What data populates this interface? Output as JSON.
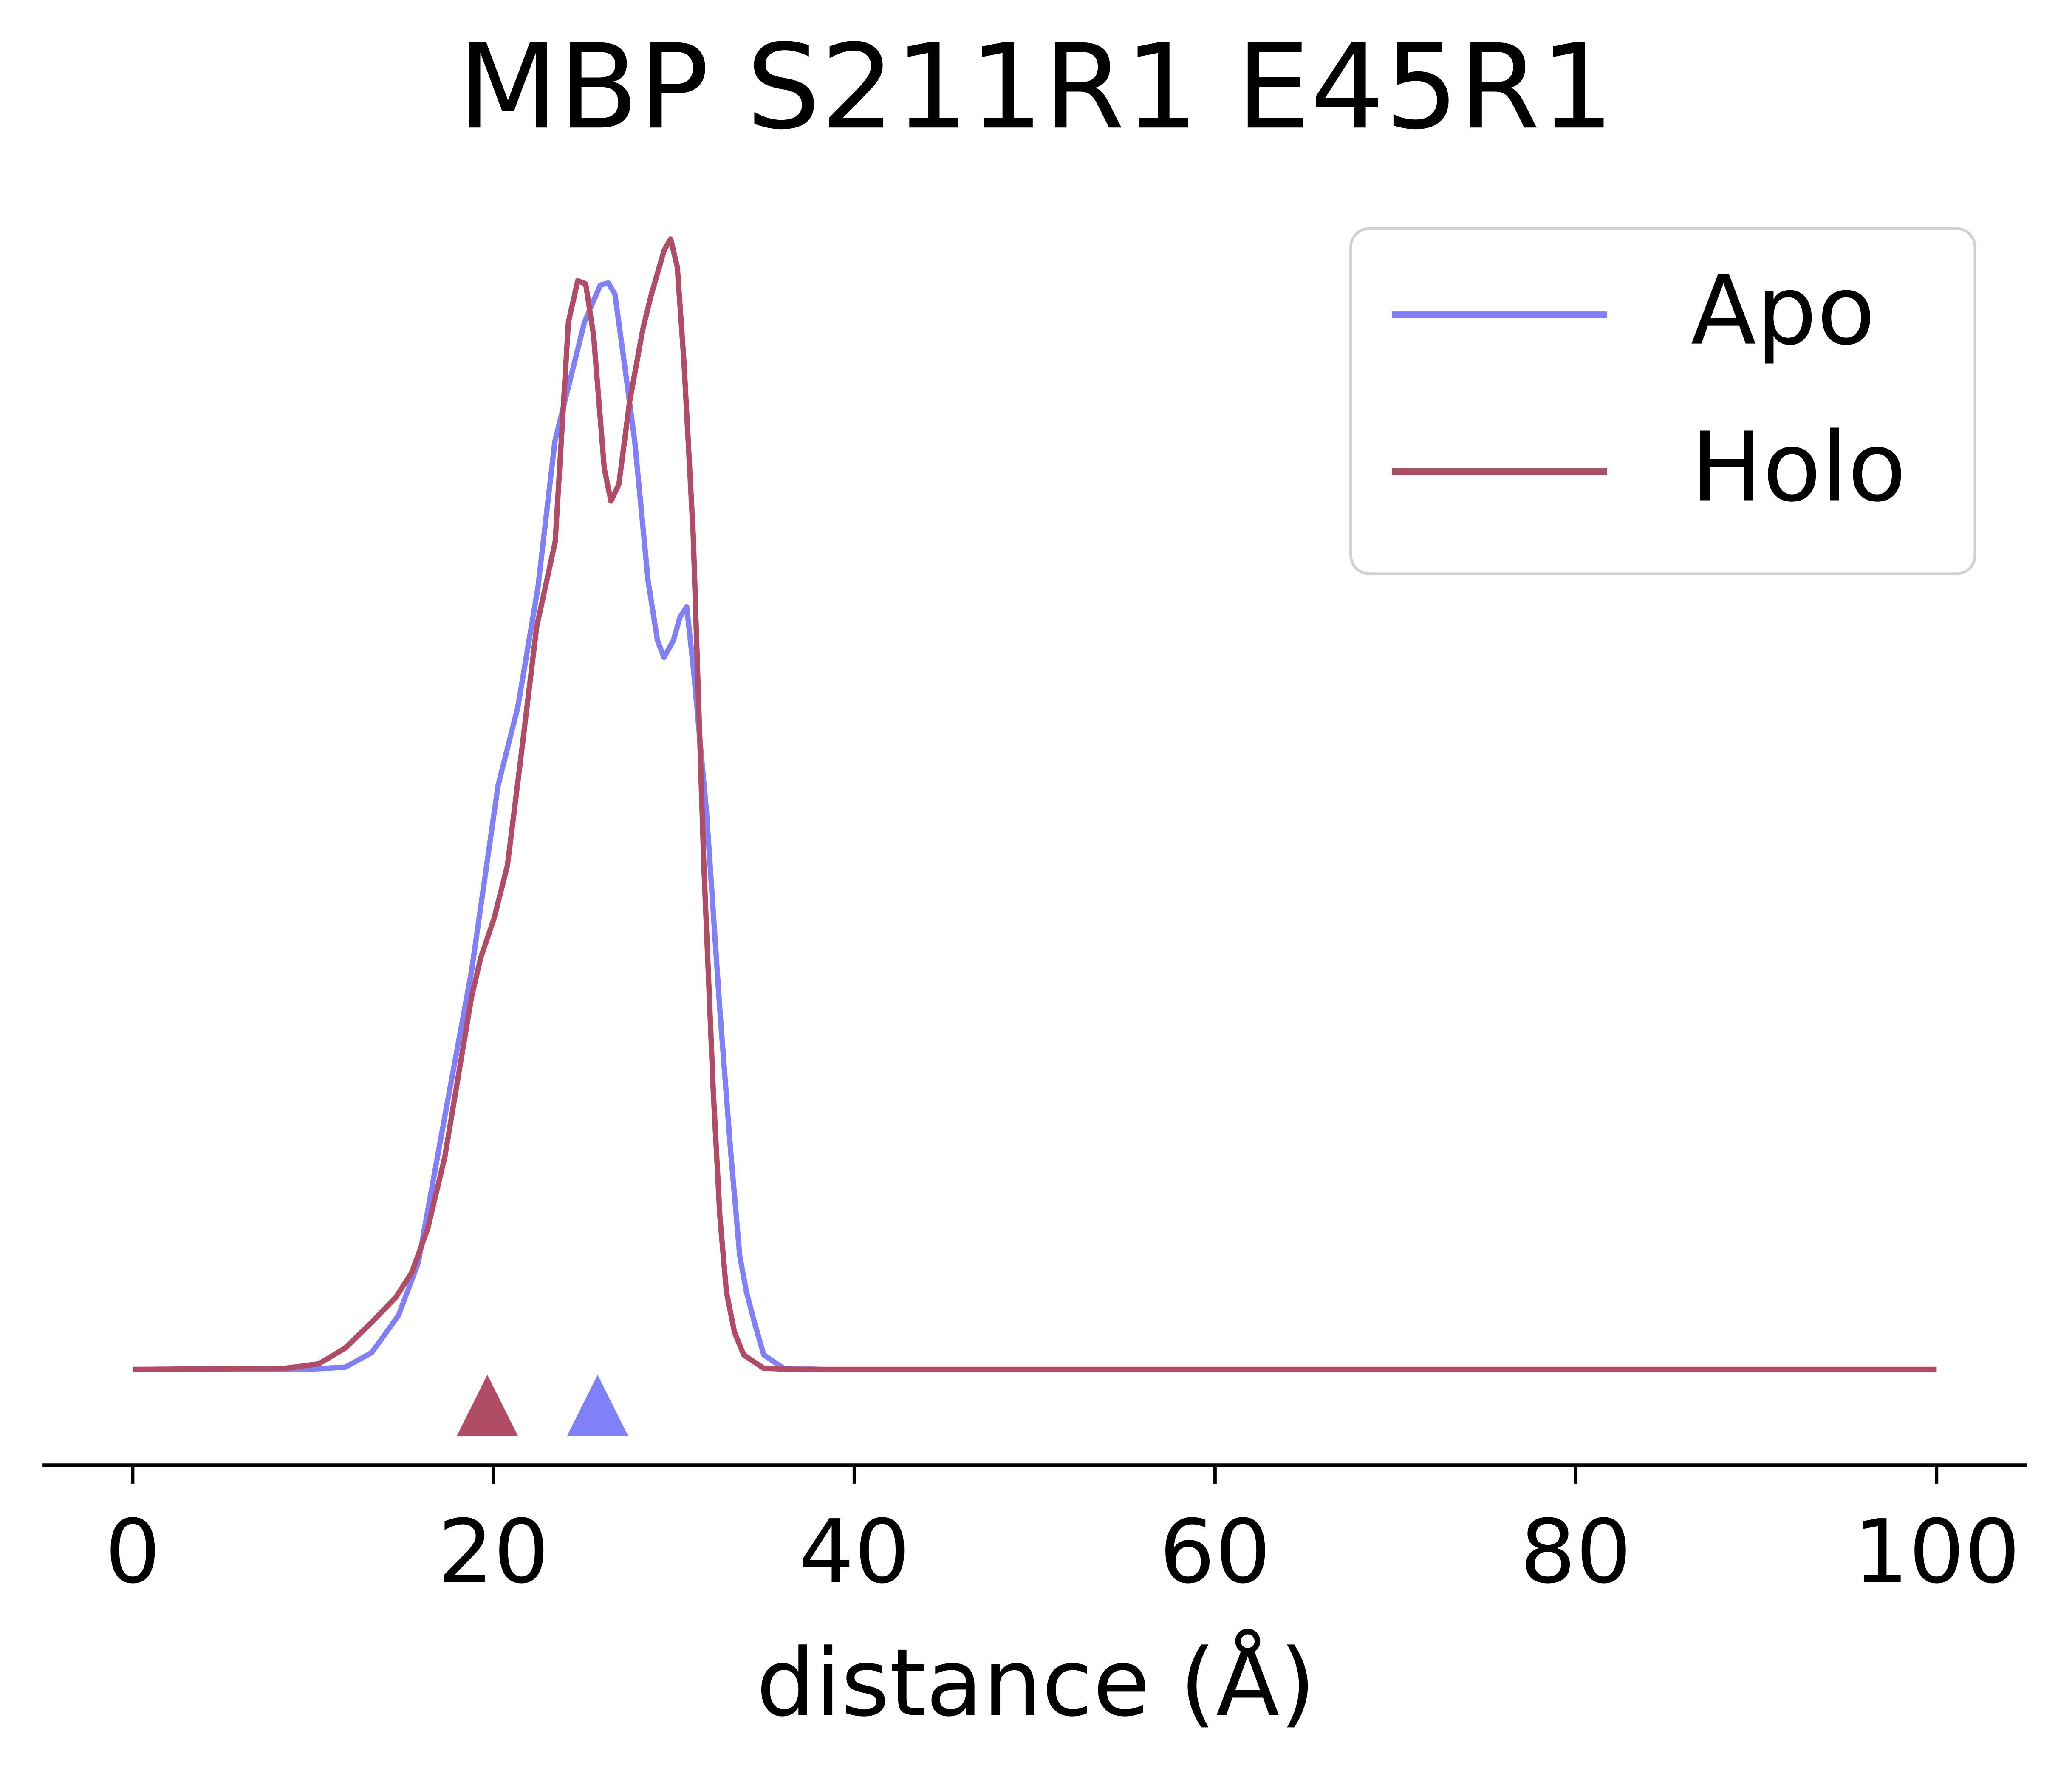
{
  "chart_data": {
    "type": "line",
    "title": "MBP S211R1 E45R1",
    "x_label": "distance (Å)",
    "xlim": [
      -5,
      105
    ],
    "xticks": [
      0,
      20,
      40,
      60,
      80,
      100
    ],
    "ylim": [
      -0.0085,
      0.1025
    ],
    "legend": "upper right",
    "grid": false,
    "series": [
      {
        "name": "Apo",
        "color": "#8080f8",
        "marker_x": 25.77,
        "x": [
          0,
          9.57,
          11.78,
          13.25,
          14.73,
          15.83,
          17.3,
          18.78,
          20.25,
          21.35,
          22.46,
          23.4,
          25.04,
          25.92,
          26.36,
          26.73,
          27.25,
          27.83,
          28.57,
          29.09,
          29.45,
          29.97,
          30.34,
          30.71,
          31.07,
          31.81,
          32.55,
          33.14,
          33.65,
          34.02,
          34.46,
          34.98,
          36.08,
          38.3,
          100
        ],
        "values": [
          0,
          0,
          0.0002,
          0.0015,
          0.0048,
          0.0095,
          0.0225,
          0.0354,
          0.0519,
          0.0589,
          0.0695,
          0.0825,
          0.0931,
          0.0964,
          0.0966,
          0.0956,
          0.0895,
          0.0825,
          0.0701,
          0.0648,
          0.0633,
          0.0648,
          0.0669,
          0.0678,
          0.0625,
          0.0495,
          0.0319,
          0.0195,
          0.0101,
          0.0069,
          0.0042,
          0.0013,
          0.0001,
          0,
          0
        ]
      },
      {
        "name": "Holo",
        "color": "#b04c64",
        "marker_x": 19.66,
        "x": [
          0,
          8.47,
          10.31,
          11.78,
          13.25,
          14.58,
          15.46,
          16.35,
          17.3,
          18.04,
          18.78,
          19.29,
          20.03,
          20.77,
          21.5,
          22.39,
          23.42,
          24.15,
          24.67,
          25.11,
          25.55,
          26.14,
          26.51,
          26.95,
          27.54,
          28.28,
          28.72,
          29.46,
          29.82,
          30.19,
          30.56,
          31.07,
          31.66,
          32.18,
          32.55,
          32.91,
          33.36,
          33.87,
          34.98,
          36.82,
          100
        ],
        "values": [
          0,
          0.0001,
          0.0005,
          0.0019,
          0.0042,
          0.0064,
          0.0086,
          0.0125,
          0.0189,
          0.026,
          0.0331,
          0.0366,
          0.0401,
          0.0448,
          0.0542,
          0.066,
          0.0736,
          0.0931,
          0.0968,
          0.0965,
          0.0919,
          0.0801,
          0.0772,
          0.0787,
          0.086,
          0.0925,
          0.0954,
          0.0995,
          0.1005,
          0.098,
          0.0895,
          0.0742,
          0.0448,
          0.0248,
          0.0136,
          0.0069,
          0.0033,
          0.0013,
          0.0001,
          0,
          0
        ]
      }
    ]
  }
}
